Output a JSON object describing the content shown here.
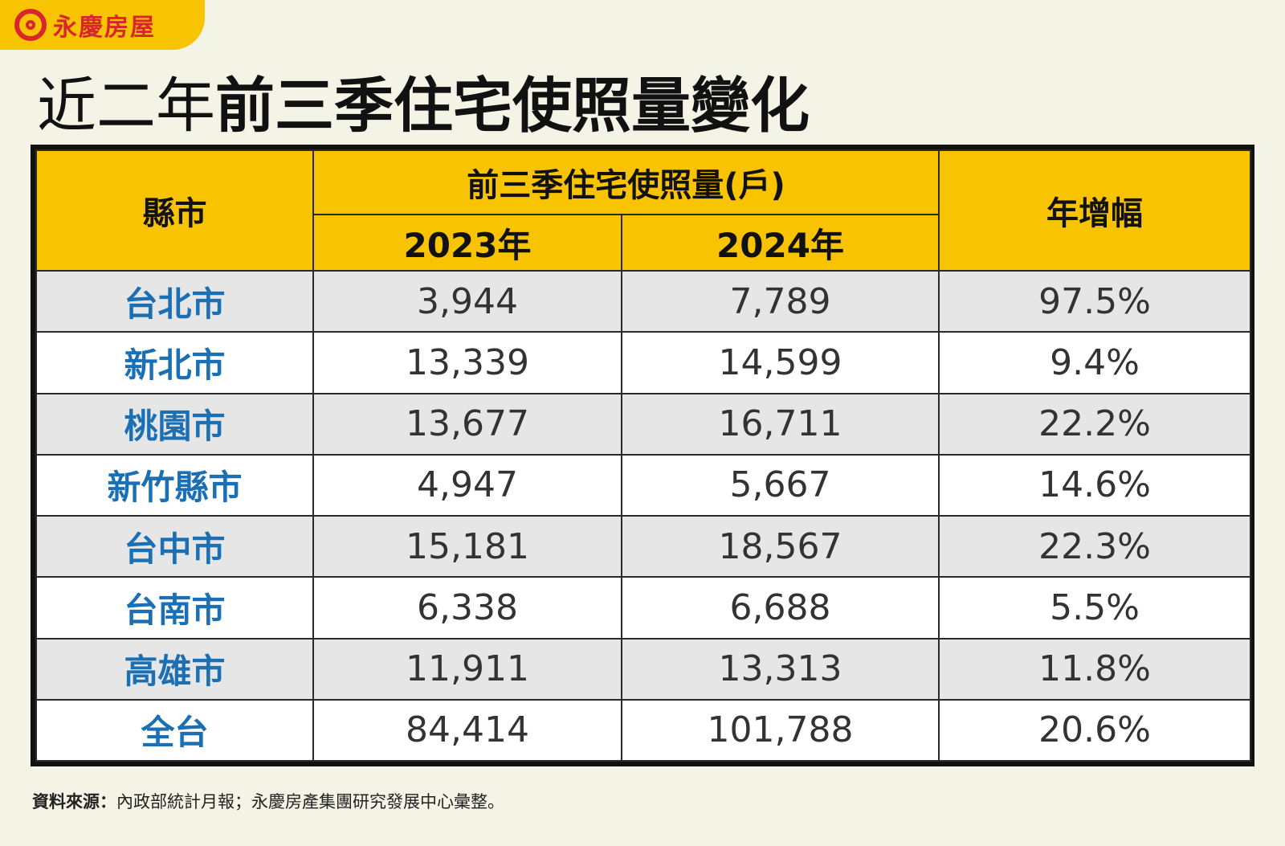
{
  "brand": {
    "logo_text": "永慶房屋",
    "colors": {
      "accent": "#f8c300",
      "logo_red": "#d9262c",
      "city_blue": "#1a6fb5"
    }
  },
  "title": {
    "light": "近二年",
    "bold": "前三季住宅使照量變化"
  },
  "table": {
    "header_city": "縣市",
    "header_group": "前三季住宅使照量(戶)",
    "header_year1": "2023年",
    "header_year2": "2024年",
    "header_growth": "年增幅",
    "rows": [
      {
        "city": "台北市",
        "y2023": "3,944",
        "y2024": "7,789",
        "growth": "97.5%"
      },
      {
        "city": "新北市",
        "y2023": "13,339",
        "y2024": "14,599",
        "growth": "9.4%"
      },
      {
        "city": "桃園市",
        "y2023": "13,677",
        "y2024": "16,711",
        "growth": "22.2%"
      },
      {
        "city": "新竹縣市",
        "y2023": "4,947",
        "y2024": "5,667",
        "growth": "14.6%"
      },
      {
        "city": "台中市",
        "y2023": "15,181",
        "y2024": "18,567",
        "growth": "22.3%"
      },
      {
        "city": "台南市",
        "y2023": "6,338",
        "y2024": "6,688",
        "growth": "5.5%"
      },
      {
        "city": "高雄市",
        "y2023": "11,911",
        "y2024": "13,313",
        "growth": "11.8%"
      },
      {
        "city": "全台",
        "y2023": "84,414",
        "y2024": "101,788",
        "growth": "20.6%"
      }
    ]
  },
  "source": {
    "label": "資料來源：",
    "text": "內政部統計月報；永慶房產集團研究發展中心彙整。"
  },
  "chart_data": {
    "type": "table",
    "title": "近二年前三季住宅使照量變化",
    "columns": [
      "縣市",
      "2023年",
      "2024年",
      "年增幅"
    ],
    "categories": [
      "台北市",
      "新北市",
      "桃園市",
      "新竹縣市",
      "台中市",
      "台南市",
      "高雄市",
      "全台"
    ],
    "series": [
      {
        "name": "2023年",
        "values": [
          3944,
          13339,
          13677,
          4947,
          15181,
          6338,
          11911,
          84414
        ]
      },
      {
        "name": "2024年",
        "values": [
          7789,
          14599,
          16711,
          5667,
          18567,
          6688,
          13313,
          101788
        ]
      },
      {
        "name": "年增幅",
        "values": [
          97.5,
          9.4,
          22.2,
          14.6,
          22.3,
          5.5,
          11.8,
          20.6
        ]
      }
    ]
  }
}
